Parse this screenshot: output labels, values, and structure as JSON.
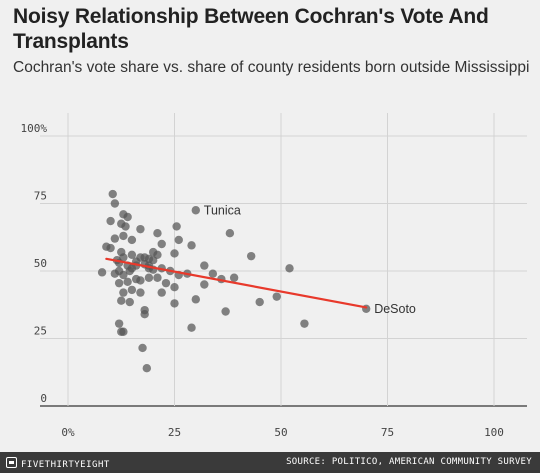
{
  "chart_data": {
    "type": "scatter",
    "title": "Noisy Relationship Between Cochran's Vote And Transplants",
    "subtitle": "Cochran's vote share vs. share of county residents born outside Mississippi",
    "xlim": [
      0,
      100
    ],
    "ylim": [
      0,
      100
    ],
    "x_ticks": [
      0,
      25,
      50,
      75,
      100
    ],
    "x_tick_labels": [
      "0%",
      "25",
      "50",
      "75",
      "100"
    ],
    "y_ticks": [
      0,
      25,
      50,
      75,
      100
    ],
    "y_tick_labels": [
      "0",
      "25",
      "50",
      "75",
      "100%"
    ],
    "grid": true,
    "point_color": "#555555",
    "trend_color": "#e8392b",
    "trend_line": {
      "x": [
        9,
        70
      ],
      "y": [
        54.5,
        36.5
      ]
    },
    "points": [
      {
        "x": 10.5,
        "y": 78.5
      },
      {
        "x": 11,
        "y": 75
      },
      {
        "x": 10,
        "y": 68.5
      },
      {
        "x": 13,
        "y": 71
      },
      {
        "x": 14,
        "y": 70
      },
      {
        "x": 12.5,
        "y": 67.5
      },
      {
        "x": 13.5,
        "y": 66.5
      },
      {
        "x": 17,
        "y": 65.5
      },
      {
        "x": 11,
        "y": 62
      },
      {
        "x": 13,
        "y": 63
      },
      {
        "x": 15,
        "y": 61.5
      },
      {
        "x": 9,
        "y": 59
      },
      {
        "x": 10,
        "y": 58.5
      },
      {
        "x": 12.5,
        "y": 57
      },
      {
        "x": 15,
        "y": 56
      },
      {
        "x": 17,
        "y": 55
      },
      {
        "x": 18,
        "y": 55
      },
      {
        "x": 19,
        "y": 54.5
      },
      {
        "x": 20,
        "y": 57
      },
      {
        "x": 21,
        "y": 56
      },
      {
        "x": 22,
        "y": 60
      },
      {
        "x": 25,
        "y": 56.5
      },
      {
        "x": 26,
        "y": 61.5
      },
      {
        "x": 25.5,
        "y": 66.5
      },
      {
        "x": 29,
        "y": 59.5
      },
      {
        "x": 30,
        "y": 72.5
      },
      {
        "x": 21,
        "y": 64
      },
      {
        "x": 11.5,
        "y": 54
      },
      {
        "x": 12,
        "y": 53
      },
      {
        "x": 13,
        "y": 55
      },
      {
        "x": 14,
        "y": 52
      },
      {
        "x": 15,
        "y": 51
      },
      {
        "x": 16,
        "y": 52
      },
      {
        "x": 18,
        "y": 52.5
      },
      {
        "x": 19,
        "y": 51
      },
      {
        "x": 20,
        "y": 50.5
      },
      {
        "x": 22,
        "y": 51
      },
      {
        "x": 24,
        "y": 50
      },
      {
        "x": 26,
        "y": 48.5
      },
      {
        "x": 28,
        "y": 49
      },
      {
        "x": 8,
        "y": 49.5
      },
      {
        "x": 11,
        "y": 49
      },
      {
        "x": 12,
        "y": 50
      },
      {
        "x": 13,
        "y": 48.5
      },
      {
        "x": 14,
        "y": 46
      },
      {
        "x": 16,
        "y": 47
      },
      {
        "x": 17,
        "y": 46.5
      },
      {
        "x": 19,
        "y": 47.5
      },
      {
        "x": 21,
        "y": 47.5
      },
      {
        "x": 23,
        "y": 45.5
      },
      {
        "x": 25,
        "y": 44
      },
      {
        "x": 12,
        "y": 45.5
      },
      {
        "x": 15,
        "y": 43
      },
      {
        "x": 13,
        "y": 42
      },
      {
        "x": 17,
        "y": 42
      },
      {
        "x": 12.5,
        "y": 39
      },
      {
        "x": 14.5,
        "y": 38.5
      },
      {
        "x": 22,
        "y": 42
      },
      {
        "x": 25,
        "y": 38
      },
      {
        "x": 30,
        "y": 39.5
      },
      {
        "x": 32,
        "y": 45
      },
      {
        "x": 32,
        "y": 52
      },
      {
        "x": 34,
        "y": 49
      },
      {
        "x": 36,
        "y": 47
      },
      {
        "x": 38,
        "y": 64
      },
      {
        "x": 39,
        "y": 47.5
      },
      {
        "x": 43,
        "y": 55.5
      },
      {
        "x": 45,
        "y": 38.5
      },
      {
        "x": 49,
        "y": 40.5
      },
      {
        "x": 52,
        "y": 51
      },
      {
        "x": 37,
        "y": 35
      },
      {
        "x": 29,
        "y": 29
      },
      {
        "x": 55.5,
        "y": 30.5
      },
      {
        "x": 18,
        "y": 35.5
      },
      {
        "x": 18,
        "y": 34
      },
      {
        "x": 12,
        "y": 30.5
      },
      {
        "x": 12.5,
        "y": 27.5
      },
      {
        "x": 13,
        "y": 27.5
      },
      {
        "x": 17.5,
        "y": 21.5
      },
      {
        "x": 18.5,
        "y": 14
      },
      {
        "x": 19,
        "y": 52
      },
      {
        "x": 20,
        "y": 54
      },
      {
        "x": 16,
        "y": 53.5
      },
      {
        "x": 14.5,
        "y": 50
      },
      {
        "x": 70,
        "y": 36
      }
    ],
    "annotations": [
      {
        "label": "Tunica",
        "x": 30,
        "y": 72.5
      },
      {
        "label": "DeSoto",
        "x": 70,
        "y": 36
      }
    ]
  },
  "footer": {
    "brand": "FIVETHIRTYEIGHT",
    "brand_icon": "fivethirtyeight-logo-icon",
    "source": "SOURCE: POLITICO, AMERICAN COMMUNITY SURVEY"
  }
}
